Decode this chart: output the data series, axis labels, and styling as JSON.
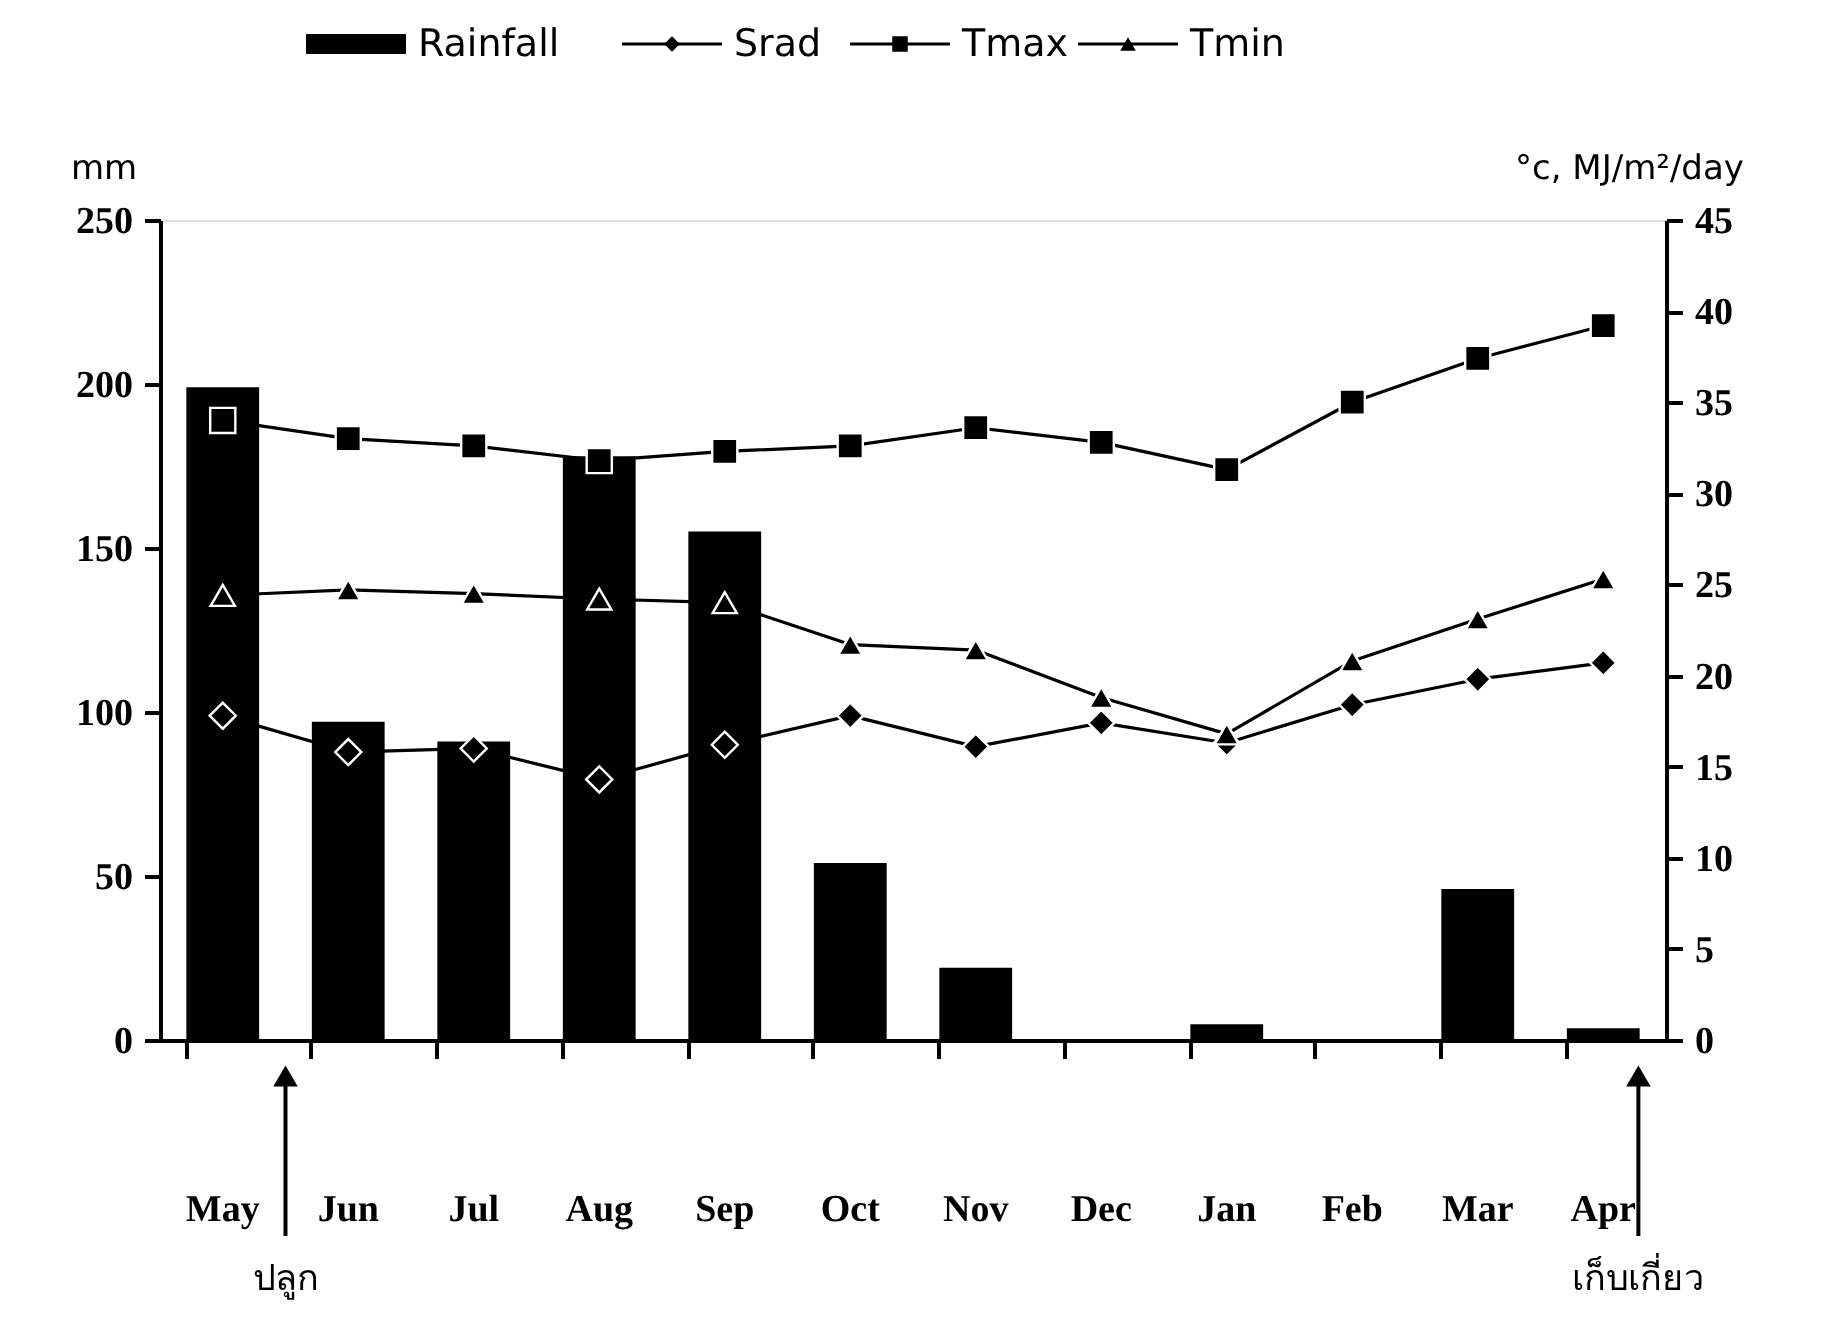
{
  "chart_data": {
    "type": "bar",
    "categories": [
      "May",
      "Jun",
      "Jul",
      "Aug",
      "Sep",
      "Oct",
      "Nov",
      "Dec",
      "Jan",
      "Feb",
      "Mar",
      "Apr"
    ],
    "ylabel": "mm",
    "y2label": "°c, MJ/m²/day",
    "ylim": [
      0,
      250
    ],
    "yticks": [
      0,
      50,
      100,
      150,
      200,
      250
    ],
    "y2lim": [
      0,
      45
    ],
    "y2ticks": [
      0,
      5,
      10,
      15,
      20,
      25,
      30,
      35,
      40,
      45
    ],
    "series": [
      {
        "name": "Rainfall",
        "color": "#000000",
        "values": [
          199,
          97,
          91,
          178,
          155,
          54,
          22,
          0,
          4.8,
          0,
          46,
          3.6
        ]
      },
      {
        "name": "Srad",
        "type": "line",
        "axis": "y2",
        "marker": "diamond",
        "color": "#000000",
        "values": [
          17.8,
          15.8,
          16.0,
          14.3,
          16.2,
          17.8,
          16.1,
          17.4,
          16.3,
          18.4,
          19.8,
          20.7
        ]
      },
      {
        "name": "Tmax",
        "type": "line",
        "axis": "y2",
        "marker": "square",
        "color": "#000000",
        "values": [
          34.0,
          33.0,
          32.6,
          31.8,
          32.3,
          32.6,
          33.6,
          32.8,
          31.3,
          35.0,
          37.4,
          39.2
        ]
      },
      {
        "name": "Tmin",
        "type": "line",
        "axis": "y2",
        "marker": "triangle",
        "color": "#000000",
        "values": [
          24.4,
          24.7,
          24.5,
          24.2,
          24.0,
          21.7,
          21.4,
          18.8,
          16.8,
          20.8,
          23.1,
          25.3
        ]
      }
    ],
    "annotations": [
      "ปลูก",
      "เก็บเกี่ยว"
    ],
    "legend": "top",
    "grid": false,
    "line_style": "solid"
  }
}
